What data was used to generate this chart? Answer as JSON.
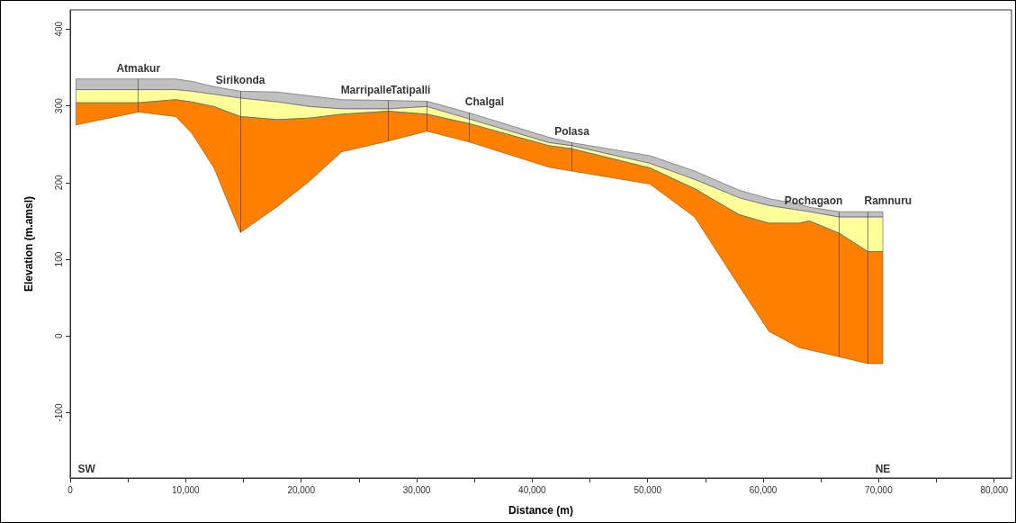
{
  "chart_data": {
    "type": "area",
    "xlabel": "Distance (m)",
    "ylabel": "Elevation (m.amsl)",
    "series": [
      {
        "color": "#c0c0c0",
        "x": [
          500,
          5900,
          9130,
          10500,
          12450,
          14740,
          17970,
          20740,
          23500,
          27530,
          30890,
          34500,
          41450,
          43440,
          50200,
          54070,
          57930,
          60510,
          63090,
          64000,
          66570,
          69070,
          70360,
          70360,
          69070,
          66570,
          64000,
          63090,
          60510,
          57930,
          54070,
          50200,
          43440,
          41450,
          34500,
          30890,
          27530,
          23500,
          20740,
          17970,
          14740,
          12450,
          10500,
          9130,
          5900,
          500
        ],
        "values": [
          335,
          335,
          335,
          332,
          325,
          319,
          318,
          313,
          308,
          307,
          306,
          291,
          259,
          252,
          235,
          215,
          190,
          179,
          172,
          168,
          162,
          162,
          162,
          155,
          155,
          155,
          162,
          164,
          170,
          180,
          204,
          225,
          248,
          252,
          283,
          299,
          296,
          296,
          299,
          305,
          310,
          315,
          319,
          321,
          321,
          321
        ]
      },
      {
        "color": "#ffff99",
        "x": [
          500,
          5900,
          9130,
          10500,
          12450,
          14740,
          17970,
          20740,
          23500,
          27530,
          30890,
          34500,
          41450,
          43440,
          50200,
          54070,
          57930,
          60510,
          63090,
          64000,
          66570,
          69070,
          70360,
          70360,
          69070,
          66570,
          64000,
          63090,
          60510,
          57930,
          54070,
          50200,
          43440,
          41450,
          34500,
          30890,
          27530,
          23500,
          20740,
          17970,
          14740,
          12450,
          10500,
          9130,
          5900,
          500
        ],
        "values": [
          321,
          321,
          321,
          319,
          315,
          310,
          305,
          299,
          296,
          296,
          299,
          283,
          252,
          248,
          225,
          204,
          180,
          170,
          164,
          162,
          155,
          155,
          155,
          110,
          110,
          134,
          150,
          147,
          147,
          158,
          192,
          219,
          244,
          248,
          277,
          289,
          293,
          289,
          284,
          282,
          286,
          299,
          305,
          308,
          304,
          304
        ]
      },
      {
        "color": "#ff8000",
        "x": [
          500,
          5900,
          9130,
          10500,
          12450,
          14740,
          17970,
          20740,
          23500,
          27530,
          30890,
          34500,
          41450,
          43440,
          50200,
          54070,
          57930,
          60510,
          63090,
          64000,
          66570,
          69070,
          70360,
          70360,
          69070,
          66570,
          64000,
          63090,
          60510,
          57930,
          54070,
          50200,
          43440,
          41450,
          34500,
          30890,
          27530,
          23500,
          20740,
          17970,
          14740,
          12450,
          10500,
          9130,
          5900,
          500
        ],
        "values": [
          304,
          304,
          308,
          305,
          299,
          286,
          282,
          284,
          289,
          293,
          289,
          277,
          248,
          244,
          219,
          192,
          158,
          147,
          147,
          150,
          134,
          110,
          110,
          -36,
          -36,
          -27,
          -18,
          -15,
          6,
          65,
          155,
          198,
          215,
          220,
          253,
          267,
          254,
          240,
          202,
          169,
          135,
          219,
          265,
          286,
          292,
          275
        ]
      }
    ],
    "xlim": [
      0,
      81500
    ],
    "xticks": [
      0,
      {
        "value": 5000,
        "label": null
      },
      {
        "value": 10000,
        "label": "10,000"
      },
      {
        "value": 15000,
        "label": null
      },
      {
        "value": 20000,
        "label": "20,000"
      },
      {
        "value": 25000,
        "label": null
      },
      {
        "value": 30000,
        "label": "30,000"
      },
      {
        "value": 35000,
        "label": null
      },
      {
        "value": 40000,
        "label": "40,000"
      },
      {
        "value": 45000,
        "label": null
      },
      {
        "value": 50000,
        "label": "50,000"
      },
      {
        "value": 55000,
        "label": null
      },
      {
        "value": 60000,
        "label": "60,000"
      },
      {
        "value": 65000,
        "label": null
      },
      {
        "value": 70000,
        "label": "70,000"
      },
      {
        "value": 75000,
        "label": null
      },
      {
        "value": 80000,
        "label": "80,000"
      }
    ],
    "ylim": [
      -185,
      425
    ],
    "yticks": [
      -100,
      0,
      100,
      200,
      300,
      400
    ],
    "grid": false,
    "annotations": [
      {
        "text": "Atmakur",
        "x": 5900,
        "y": 335
      },
      {
        "text": "Sirikonda",
        "x": 14740,
        "y": 319
      },
      {
        "text": "Marripalle",
        "x": 27530,
        "y": 307
      },
      {
        "text": "Tatipalli",
        "x": 30890,
        "y": 306
      },
      {
        "text": "Chalgal",
        "x": 34500,
        "y": 291
      },
      {
        "text": "Polasa",
        "x": 43440,
        "y": 252
      },
      {
        "text": "Pochagaon",
        "x": 66570,
        "y": 162
      },
      {
        "text": "Ramnuru",
        "x": 69070,
        "y": 162
      },
      "SW",
      "NE"
    ]
  }
}
